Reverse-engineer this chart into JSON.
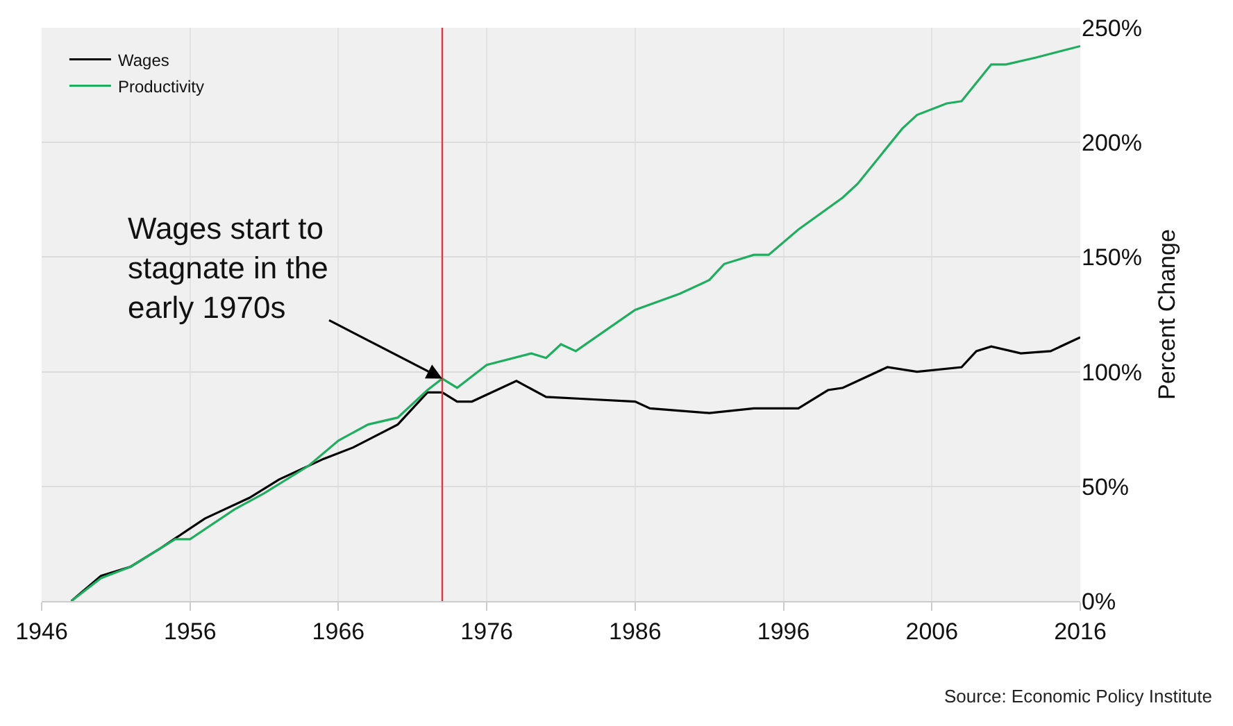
{
  "chart_data": {
    "type": "line",
    "ylabel": "Percent Change",
    "xlim": [
      1946,
      2016
    ],
    "xticks": [
      1946,
      1956,
      1966,
      1976,
      1986,
      1996,
      2006,
      2016
    ],
    "ylim": [
      0,
      250
    ],
    "yticks": [
      {
        "value": 0,
        "label": "0%"
      },
      {
        "value": 50,
        "label": "50%"
      },
      {
        "value": 100,
        "label": "100%"
      },
      {
        "value": 150,
        "label": "150%"
      },
      {
        "value": 200,
        "label": "200%"
      },
      {
        "value": 250,
        "label": "250%"
      }
    ],
    "grid": true,
    "legend": "top left",
    "line_style": "solid",
    "marker": "none",
    "series": [
      {
        "name": "Wages",
        "color": "#000000",
        "x": [
          1948,
          1950,
          1952,
          1954,
          1957,
          1958,
          1960,
          1962,
          1965,
          1967,
          1970,
          1972,
          1973,
          1974,
          1975,
          1978,
          1980,
          1983,
          1986,
          1987,
          1991,
          1994,
          1997,
          1999,
          2000,
          2003,
          2005,
          2008,
          2009,
          2010,
          2012,
          2014,
          2016
        ],
        "values": [
          0,
          11,
          15,
          23,
          36,
          39,
          45,
          53,
          62,
          67,
          77,
          91,
          91,
          87,
          87,
          96,
          89,
          88,
          87,
          84,
          82,
          84,
          84,
          92,
          93,
          102,
          100,
          102,
          109,
          111,
          108,
          109,
          115
        ]
      },
      {
        "name": "Productivity",
        "color": "#1fae5f",
        "x": [
          1948,
          1950,
          1952,
          1955,
          1956,
          1959,
          1961,
          1964,
          1966,
          1968,
          1970,
          1972,
          1973,
          1974,
          1976,
          1979,
          1980,
          1981,
          1982,
          1984,
          1986,
          1989,
          1991,
          1992,
          1994,
          1995,
          1997,
          2000,
          2001,
          2004,
          2005,
          2007,
          2008,
          2009,
          2010,
          2011,
          2013,
          2016
        ],
        "values": [
          0,
          10,
          15,
          27,
          27,
          40,
          47,
          59,
          70,
          77,
          80,
          92,
          97,
          93,
          103,
          108,
          106,
          112,
          109,
          118,
          127,
          134,
          140,
          147,
          151,
          151,
          162,
          176,
          182,
          206,
          212,
          217,
          218,
          226,
          234,
          234,
          237,
          242
        ]
      }
    ],
    "ref_lines": [
      {
        "axis": "x",
        "value": 1973,
        "color": "#d9363e"
      }
    ],
    "annotations": [
      {
        "text": "Wages start to\nstagnate in the\nearly 1970s",
        "x": 1973,
        "y": 97
      },
      "Source: Economic Policy Institute"
    ]
  }
}
